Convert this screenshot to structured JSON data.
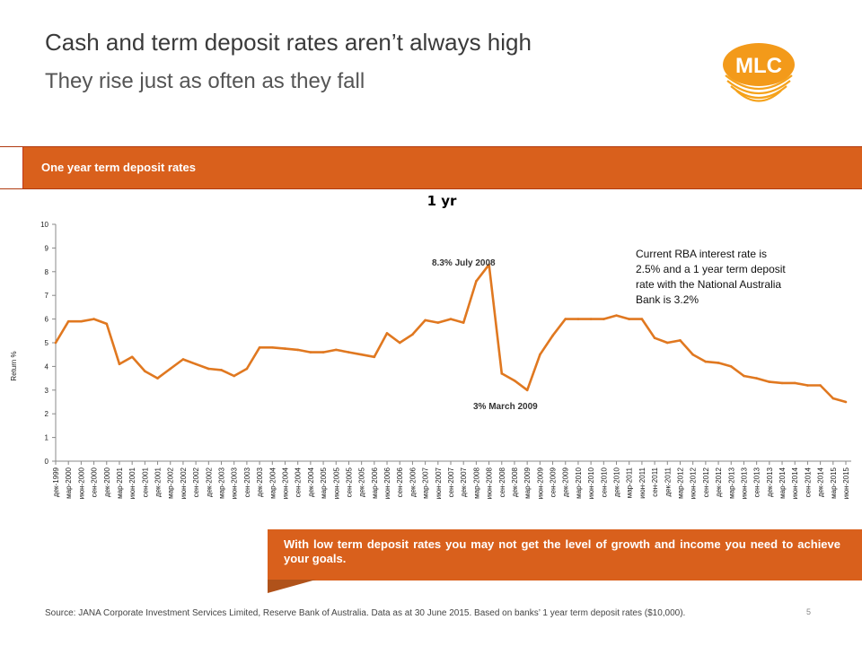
{
  "header": {
    "title": "Cash and term deposit rates aren’t always high",
    "subtitle": "They rise just as often as they fall",
    "logo_text": "MLC"
  },
  "banner": {
    "label": "One year term deposit rates"
  },
  "colors": {
    "accent": "#d9601c",
    "line": "#e07820"
  },
  "callout": {
    "text": "With low term deposit rates you may not get the level of growth and income you need to achieve your goals."
  },
  "footer": {
    "source": "Source: JANA Corporate Investment Services Limited, Reserve Bank of Australia. Data as at 30 June 2015. Based on banks’ 1 year term deposit rates ($10,000).",
    "page_number": "5"
  },
  "chart_data": {
    "type": "line",
    "title": "1 yr",
    "ylabel": "Return %",
    "xlabel": "",
    "ylim": [
      0,
      10
    ],
    "yticks": [
      "0",
      "1",
      "2",
      "3",
      "4",
      "5",
      "6",
      "7",
      "8",
      "9",
      "10"
    ],
    "grid": false,
    "categories": [
      "дек-1999",
      "мар-2000",
      "июн-2000",
      "сен-2000",
      "дек-2000",
      "мар-2001",
      "июн-2001",
      "сен-2001",
      "дек-2001",
      "мар-2002",
      "июн-2002",
      "сен-2002",
      "дек-2002",
      "мар-2003",
      "июн-2003",
      "сен-2003",
      "дек-2003",
      "мар-2004",
      "июн-2004",
      "сен-2004",
      "дек-2004",
      "мар-2005",
      "июн-2005",
      "сен-2005",
      "дек-2005",
      "мар-2006",
      "июн-2006",
      "сен-2006",
      "дек-2006",
      "мар-2007",
      "июн-2007",
      "сен-2007",
      "дек-2007",
      "мар-2008",
      "июн-2008",
      "сен-2008",
      "дек-2008",
      "мар-2009",
      "июн-2009",
      "сен-2009",
      "дек-2009",
      "мар-2010",
      "июн-2010",
      "сен-2010",
      "дек-2010",
      "мар-2011",
      "июн-2011",
      "сен-2011",
      "дек-2011",
      "мар-2012",
      "июн-2012",
      "сен-2012",
      "дек-2012",
      "мар-2013",
      "июн-2013",
      "сен-2013",
      "дек-2013",
      "мар-2014",
      "июн-2014",
      "сен-2014",
      "дек-2014",
      "мар-2015",
      "июн-2015"
    ],
    "series": [
      {
        "values": [
          5.0,
          5.9,
          5.9,
          6.0,
          5.8,
          4.1,
          4.4,
          3.8,
          3.5,
          3.9,
          4.3,
          4.1,
          3.9,
          3.85,
          3.6,
          3.9,
          4.8,
          4.8,
          4.75,
          4.7,
          4.6,
          4.6,
          4.7,
          4.6,
          4.5,
          4.4,
          5.4,
          5.0,
          5.35,
          5.95,
          5.85,
          6.0,
          5.85,
          7.6,
          8.3,
          3.7,
          3.4,
          3.0,
          4.5,
          5.3,
          6.0,
          6.0,
          6.0,
          6.0,
          6.15,
          6.0,
          6.0,
          5.2,
          5.0,
          5.1,
          4.5,
          4.2,
          4.15,
          4.0,
          3.6,
          3.5,
          3.35,
          3.3,
          3.3,
          3.2,
          3.2,
          2.65,
          2.5
        ]
      }
    ],
    "annotations": {
      "peak": "8.3% July 2008",
      "trough": "3% March 2009",
      "rba_lines": [
        "Current RBA interest rate is",
        "2.5% and a 1 year term deposit",
        "rate with the National Australia",
        "Bank is 3.2%"
      ]
    }
  }
}
